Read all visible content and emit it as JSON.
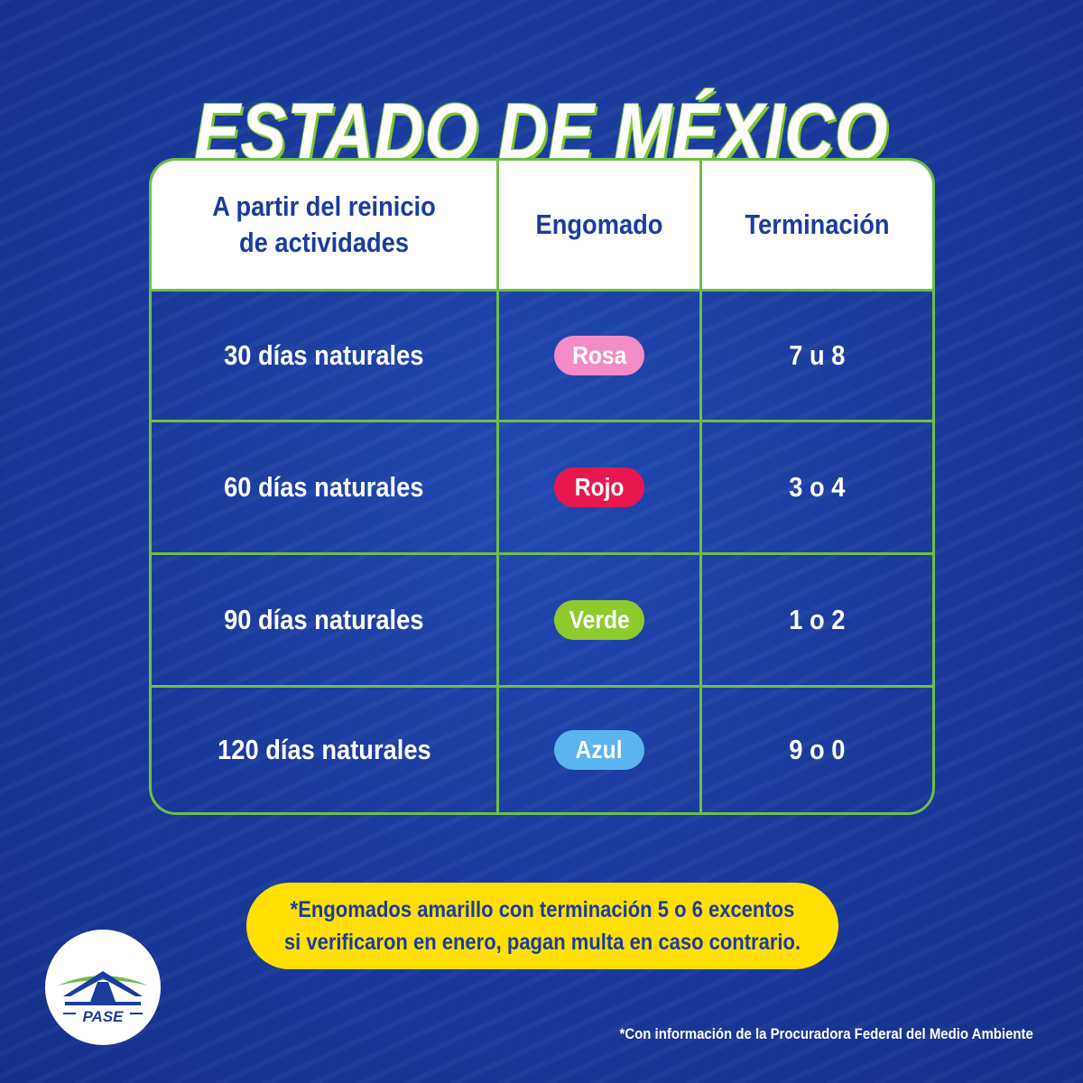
{
  "title": "ESTADO DE MÉXICO",
  "table": {
    "headers": [
      "A partir del reinicio de actividades",
      "Engomado",
      "Terminación"
    ],
    "rows": [
      {
        "period": "30 días naturales",
        "sticker": "Rosa",
        "sticker_color": "#f28cc6",
        "ending": "7 u 8"
      },
      {
        "period": "60 días naturales",
        "sticker": "Rojo",
        "sticker_color": "#e8184f",
        "ending": "3 o 4"
      },
      {
        "period": "90 días naturales",
        "sticker": "Verde",
        "sticker_color": "#8dcb2c",
        "ending": "1 o 2"
      },
      {
        "period": "120 días naturales",
        "sticker": "Azul",
        "sticker_color": "#5cb4ee",
        "ending": "9 o 0"
      }
    ]
  },
  "note": "*Engomados amarillo con terminación 5 o 6 excentos si verificaron en enero, pagan multa en caso contrario.",
  "source": "*Con información de la Procuradora Federal del Medio Ambiente",
  "logo": {
    "text": "PASE",
    "icon": "pase-logo-icon"
  },
  "colors": {
    "background": "#1a3d9e",
    "accent_green": "#6cc04a",
    "note_yellow": "#ffe000",
    "header_text": "#1a3d9e"
  }
}
